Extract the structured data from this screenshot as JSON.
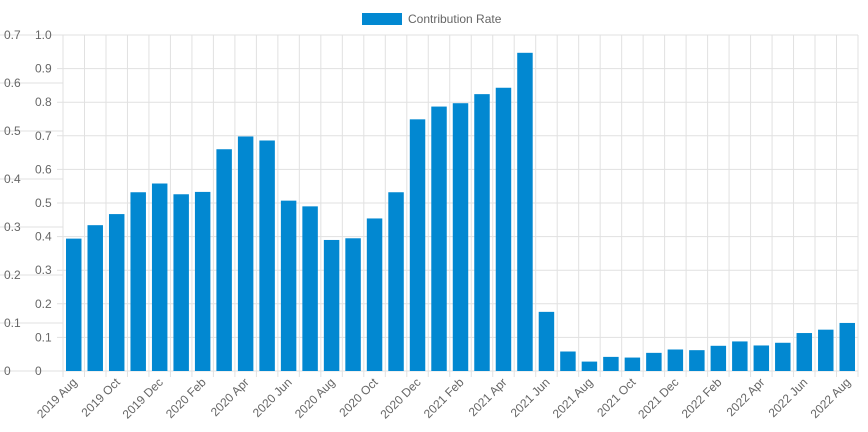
{
  "legend": {
    "label": "Contribution Rate"
  },
  "colors": {
    "bar": "#0288d1",
    "grid": "#e1e1e1",
    "tick_text": "#666666"
  },
  "chart_data": {
    "type": "bar",
    "title": "",
    "series": [
      {
        "name": "Contribution Rate",
        "values": [
          0.394,
          0.434,
          0.467,
          0.532,
          0.558,
          0.526,
          0.533,
          0.66,
          0.698,
          0.686,
          0.507,
          0.49,
          0.39,
          0.395,
          0.454,
          0.532,
          0.749,
          0.787,
          0.797,
          0.824,
          0.843,
          0.947,
          0.176,
          0.058,
          0.028,
          0.042,
          0.04,
          0.054,
          0.064,
          0.062,
          0.075,
          0.088,
          0.076,
          0.084,
          0.113,
          0.123,
          0.143
        ]
      }
    ],
    "categories": [
      "2019 Aug",
      "2019 Sep",
      "2019 Oct",
      "2019 Nov",
      "2019 Dec",
      "2020 Jan",
      "2020 Feb",
      "2020 Mar",
      "2020 Apr",
      "2020 May",
      "2020 Jun",
      "2020 Jul",
      "2020 Aug",
      "2020 Sep",
      "2020 Oct",
      "2020 Nov",
      "2020 Dec",
      "2021 Jan",
      "2021 Feb",
      "2021 Mar",
      "2021 Apr",
      "2021 May",
      "2021 Jun",
      "2021 Jul",
      "2021 Aug",
      "2021 Sep",
      "2021 Oct",
      "2021 Nov",
      "2021 Dec",
      "2022 Jan",
      "2022 Feb",
      "2022 Mar",
      "2022 Apr",
      "2022 May",
      "2022 Jun",
      "2022 Jul",
      "2022 Aug"
    ],
    "x_tick_labels": [
      "2019 Aug",
      "2019 Oct",
      "2019 Dec",
      "2020 Feb",
      "2020 Apr",
      "2020 Jun",
      "2020 Aug",
      "2020 Oct",
      "2020 Dec",
      "2021 Feb",
      "2021 Apr",
      "2021 Jun",
      "2021 Aug",
      "2021 Oct",
      "2021 Dec",
      "2022 Feb",
      "2022 Apr",
      "2022 Jun",
      "2022 Aug"
    ],
    "y_left_ticks": [
      "0",
      "0.1",
      "0.2",
      "0.3",
      "0.4",
      "0.5",
      "0.6",
      "0.7"
    ],
    "y_right_ticks": [
      "0",
      "0.1",
      "0.2",
      "0.3",
      "0.4",
      "0.5",
      "0.6",
      "0.7",
      "0.8",
      "0.9",
      "1.0"
    ],
    "ylim": [
      0,
      1.0
    ],
    "y_left_lim": [
      0,
      0.7
    ],
    "grid": true,
    "legend_position": "top-center"
  }
}
